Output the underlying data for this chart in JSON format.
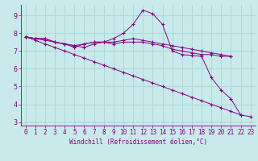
{
  "bg_color": "#c8eaea",
  "grid_color": "#b0d8d8",
  "line_color": "#880088",
  "xlabel": "Windchill (Refroidissement éolien,°C)",
  "xlim": [
    -0.5,
    23.5
  ],
  "ylim": [
    2.8,
    9.6
  ],
  "yticks": [
    3,
    4,
    5,
    6,
    7,
    8,
    9
  ],
  "xticks": [
    0,
    1,
    2,
    3,
    4,
    5,
    6,
    7,
    8,
    9,
    10,
    11,
    12,
    13,
    14,
    15,
    16,
    17,
    18,
    19,
    20,
    21,
    22,
    23
  ],
  "series": [
    {
      "x": [
        0,
        1,
        2,
        3,
        4,
        5,
        6,
        7,
        8,
        9,
        10,
        11,
        12,
        13,
        14,
        15,
        16,
        17,
        18,
        19,
        20,
        21,
        22
      ],
      "y": [
        7.8,
        7.7,
        7.7,
        7.5,
        7.4,
        7.3,
        7.2,
        7.4,
        7.5,
        7.7,
        8.0,
        8.5,
        9.3,
        9.1,
        8.5,
        7.0,
        6.8,
        6.75,
        6.7,
        5.5,
        4.8,
        4.3,
        3.4
      ]
    },
    {
      "x": [
        0,
        1,
        2,
        3,
        4,
        5,
        6,
        7,
        8,
        9,
        10,
        11,
        12,
        13,
        14,
        15,
        16,
        17,
        18,
        19,
        20,
        21
      ],
      "y": [
        7.8,
        7.7,
        7.7,
        7.5,
        7.4,
        7.2,
        7.4,
        7.5,
        7.5,
        7.4,
        7.5,
        7.5,
        7.5,
        7.4,
        7.3,
        7.1,
        7.0,
        6.9,
        6.8,
        6.8,
        6.7,
        6.7
      ]
    },
    {
      "x": [
        0,
        1,
        2,
        3,
        4,
        5,
        6,
        7,
        8,
        9,
        10,
        11,
        12,
        13,
        14,
        15,
        16,
        17,
        18,
        19,
        20,
        21
      ],
      "y": [
        7.8,
        7.7,
        7.6,
        7.5,
        7.4,
        7.3,
        7.4,
        7.5,
        7.5,
        7.5,
        7.6,
        7.7,
        7.6,
        7.5,
        7.4,
        7.3,
        7.2,
        7.1,
        7.0,
        6.9,
        6.8,
        6.7
      ]
    },
    {
      "x": [
        0,
        1,
        2,
        3,
        4,
        5,
        6,
        7,
        8,
        9,
        10,
        11,
        12,
        13,
        14,
        15,
        16,
        17,
        18,
        19,
        20,
        21,
        22,
        23
      ],
      "y": [
        7.8,
        7.6,
        7.4,
        7.2,
        7.0,
        6.8,
        6.6,
        6.4,
        6.2,
        6.0,
        5.8,
        5.6,
        5.4,
        5.2,
        5.0,
        4.8,
        4.6,
        4.4,
        4.2,
        4.0,
        3.8,
        3.6,
        3.4,
        3.3
      ]
    }
  ]
}
